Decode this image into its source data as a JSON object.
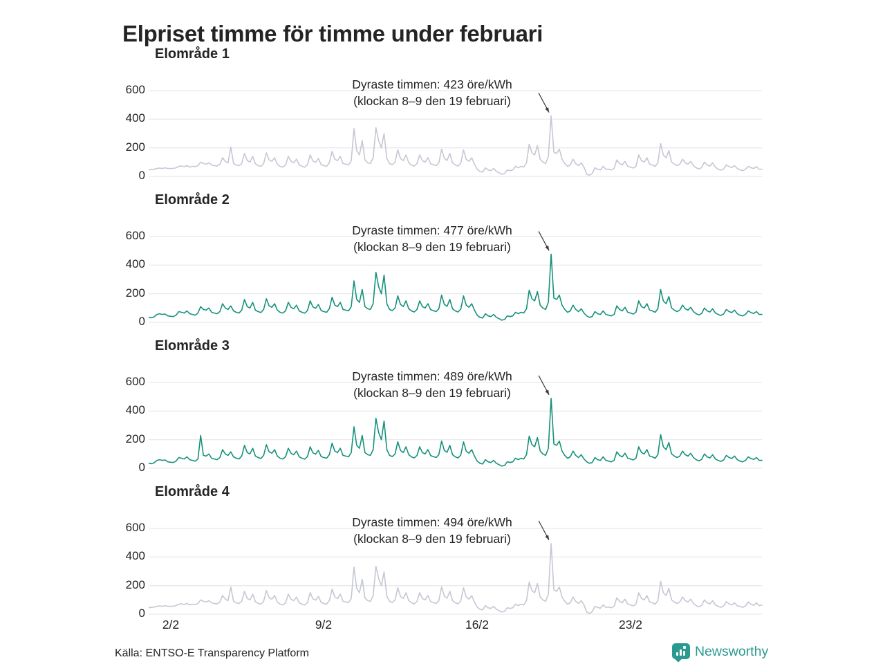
{
  "header": {
    "title": "Elpriset timme för timme under februari"
  },
  "footer": {
    "source": "Källa: ENTSO-E Transparency Platform",
    "brand": "Newsworthy",
    "brand_color": "#2a9a90"
  },
  "chart_data": {
    "type": "line",
    "title": "Elpriset timme för timme under februari",
    "unit": "öre/kWh",
    "x_domain_days": [
      1,
      29
    ],
    "samples_per_day": 8,
    "grid": true,
    "gridline_color": "#e3e3e6",
    "y_tick_values": [
      0,
      200,
      400,
      600
    ],
    "y_tick_labels": [
      "600",
      "400",
      "200",
      "0"
    ],
    "ylim": [
      0,
      730
    ],
    "x_tick_labels": [
      "2/2",
      "9/2",
      "16/2",
      "23/2"
    ],
    "x_tick_days": [
      2,
      9,
      16,
      23
    ],
    "panels": [
      {
        "title": "Elområde 1",
        "color": "#c5c7d3",
        "max_value": 423,
        "annotation_line1": "Dyraste timmen: 423 öre/kWh",
        "annotation_line2": "(klockan 8–9 den 19 februari)",
        "spike_day": 19.375,
        "values": [
          45,
          48,
          50,
          55,
          58,
          55,
          60,
          55,
          55,
          56,
          60,
          70,
          72,
          68,
          75,
          65,
          70,
          68,
          75,
          100,
          90,
          85,
          95,
          80,
          75,
          72,
          85,
          130,
          105,
          95,
          205,
          90,
          80,
          75,
          90,
          160,
          110,
          100,
          140,
          88,
          75,
          70,
          90,
          165,
          115,
          105,
          130,
          85,
          70,
          65,
          80,
          140,
          105,
          95,
          120,
          80,
          70,
          64,
          82,
          150,
          108,
          98,
          125,
          82,
          75,
          70,
          95,
          175,
          120,
          110,
          140,
          90,
          85,
          80,
          110,
          335,
          180,
          150,
          250,
          115,
          95,
          90,
          130,
          340,
          250,
          200,
          300,
          125,
          90,
          82,
          100,
          185,
          125,
          110,
          150,
          95,
          80,
          72,
          90,
          150,
          110,
          100,
          130,
          88,
          82,
          75,
          95,
          190,
          125,
          112,
          160,
          95,
          80,
          72,
          92,
          185,
          120,
          105,
          130,
          85,
          50,
          35,
          30,
          60,
          45,
          40,
          55,
          35,
          25,
          15,
          20,
          45,
          40,
          45,
          70,
          60,
          70,
          65,
          95,
          225,
          165,
          150,
          215,
          120,
          100,
          90,
          140,
          423,
          170,
          160,
          190,
          120,
          90,
          70,
          80,
          120,
          90,
          75,
          95,
          65,
          15,
          8,
          20,
          60,
          50,
          45,
          70,
          50,
          50,
          45,
          55,
          115,
          90,
          80,
          105,
          70,
          65,
          58,
          70,
          150,
          110,
          100,
          130,
          85,
          80,
          70,
          95,
          230,
          150,
          130,
          180,
          100,
          85,
          75,
          85,
          120,
          95,
          85,
          105,
          75,
          60,
          52,
          62,
          100,
          80,
          72,
          95,
          65,
          50,
          44,
          52,
          80,
          68,
          62,
          75,
          55,
          45,
          40,
          50,
          70,
          60,
          55,
          68,
          50,
          50
        ]
      },
      {
        "title": "Elområde 2",
        "color": "#15917b",
        "max_value": 477,
        "annotation_line1": "Dyraste timmen: 477 öre/kWh",
        "annotation_line2": "(klockan 8–9 den 19 februari)",
        "spike_day": 19.375,
        "values": [
          35,
          32,
          38,
          55,
          60,
          55,
          58,
          45,
          42,
          40,
          50,
          75,
          70,
          65,
          80,
          60,
          55,
          50,
          65,
          110,
          90,
          85,
          100,
          70,
          65,
          60,
          75,
          130,
          100,
          90,
          115,
          80,
          70,
          65,
          85,
          160,
          110,
          100,
          140,
          85,
          75,
          68,
          90,
          165,
          115,
          105,
          130,
          85,
          70,
          65,
          80,
          140,
          105,
          95,
          120,
          80,
          70,
          64,
          82,
          150,
          108,
          98,
          125,
          82,
          75,
          70,
          95,
          175,
          120,
          110,
          140,
          90,
          85,
          80,
          110,
          290,
          160,
          140,
          230,
          110,
          95,
          90,
          130,
          350,
          250,
          200,
          330,
          130,
          90,
          82,
          100,
          185,
          125,
          110,
          150,
          95,
          80,
          72,
          90,
          150,
          110,
          100,
          130,
          88,
          82,
          75,
          95,
          190,
          125,
          112,
          160,
          95,
          80,
          72,
          92,
          185,
          120,
          105,
          130,
          85,
          50,
          35,
          30,
          60,
          45,
          40,
          55,
          35,
          25,
          15,
          20,
          45,
          40,
          45,
          70,
          60,
          70,
          65,
          95,
          225,
          165,
          150,
          215,
          120,
          100,
          90,
          140,
          477,
          170,
          160,
          190,
          120,
          90,
          70,
          80,
          120,
          90,
          75,
          95,
          65,
          45,
          35,
          40,
          75,
          60,
          55,
          80,
          55,
          50,
          45,
          55,
          115,
          90,
          80,
          105,
          70,
          65,
          58,
          70,
          150,
          110,
          100,
          130,
          85,
          80,
          70,
          95,
          230,
          150,
          130,
          180,
          100,
          85,
          75,
          85,
          120,
          95,
          85,
          105,
          75,
          60,
          52,
          62,
          100,
          80,
          72,
          95,
          65,
          55,
          48,
          58,
          90,
          75,
          68,
          85,
          60,
          50,
          45,
          55,
          80,
          68,
          62,
          75,
          55,
          55
        ]
      },
      {
        "title": "Elområde 3",
        "color": "#15917b",
        "max_value": 489,
        "annotation_line1": "Dyraste timmen: 489 öre/kWh",
        "annotation_line2": "(klockan 8–9 den 19 februari)",
        "spike_day": 19.375,
        "values": [
          35,
          32,
          38,
          55,
          60,
          55,
          58,
          45,
          42,
          40,
          50,
          75,
          70,
          65,
          80,
          60,
          55,
          50,
          65,
          230,
          90,
          85,
          100,
          70,
          65,
          60,
          75,
          130,
          100,
          90,
          115,
          80,
          70,
          65,
          85,
          160,
          110,
          100,
          140,
          85,
          75,
          68,
          90,
          165,
          115,
          105,
          130,
          85,
          70,
          65,
          80,
          140,
          105,
          95,
          120,
          80,
          70,
          64,
          82,
          150,
          108,
          98,
          125,
          82,
          75,
          70,
          95,
          175,
          120,
          110,
          140,
          90,
          85,
          80,
          110,
          290,
          160,
          140,
          230,
          110,
          95,
          90,
          130,
          350,
          250,
          200,
          330,
          130,
          90,
          82,
          100,
          185,
          125,
          110,
          150,
          95,
          80,
          72,
          90,
          150,
          110,
          100,
          130,
          88,
          82,
          75,
          95,
          190,
          125,
          112,
          160,
          95,
          80,
          72,
          92,
          185,
          120,
          105,
          130,
          85,
          50,
          35,
          30,
          60,
          45,
          40,
          55,
          35,
          25,
          15,
          20,
          45,
          40,
          45,
          70,
          60,
          70,
          65,
          95,
          225,
          165,
          150,
          215,
          120,
          100,
          90,
          140,
          489,
          170,
          160,
          190,
          120,
          90,
          70,
          80,
          120,
          90,
          75,
          95,
          65,
          45,
          35,
          40,
          75,
          60,
          55,
          80,
          55,
          50,
          45,
          55,
          115,
          90,
          80,
          105,
          70,
          65,
          58,
          70,
          150,
          110,
          100,
          130,
          85,
          80,
          70,
          95,
          235,
          150,
          130,
          180,
          100,
          85,
          75,
          85,
          120,
          95,
          85,
          105,
          75,
          60,
          52,
          62,
          100,
          80,
          72,
          95,
          65,
          55,
          48,
          58,
          90,
          75,
          68,
          85,
          60,
          50,
          45,
          55,
          80,
          68,
          62,
          75,
          55,
          55
        ]
      },
      {
        "title": "Elområde 4",
        "color": "#c5c7d3",
        "max_value": 494,
        "annotation_line1": "Dyraste timmen: 494 öre/kWh",
        "annotation_line2": "(klockan 8–9 den 19 februari)",
        "spike_day": 19.375,
        "values": [
          45,
          48,
          50,
          55,
          58,
          55,
          60,
          55,
          55,
          56,
          60,
          70,
          72,
          68,
          75,
          65,
          70,
          68,
          75,
          100,
          90,
          85,
          95,
          80,
          75,
          72,
          85,
          130,
          105,
          95,
          190,
          90,
          80,
          75,
          90,
          160,
          110,
          100,
          140,
          88,
          75,
          70,
          90,
          165,
          115,
          105,
          130,
          85,
          70,
          65,
          80,
          140,
          105,
          95,
          120,
          80,
          70,
          64,
          82,
          150,
          108,
          98,
          125,
          82,
          75,
          70,
          95,
          175,
          120,
          110,
          140,
          90,
          85,
          80,
          110,
          330,
          180,
          150,
          245,
          115,
          95,
          90,
          130,
          335,
          250,
          200,
          295,
          125,
          90,
          82,
          100,
          185,
          125,
          110,
          150,
          95,
          80,
          72,
          90,
          150,
          110,
          100,
          130,
          88,
          82,
          75,
          95,
          190,
          125,
          112,
          160,
          95,
          80,
          72,
          92,
          185,
          120,
          105,
          130,
          85,
          50,
          35,
          30,
          60,
          45,
          40,
          55,
          35,
          25,
          15,
          20,
          45,
          40,
          45,
          70,
          60,
          70,
          65,
          95,
          225,
          165,
          150,
          215,
          120,
          100,
          90,
          140,
          494,
          170,
          160,
          190,
          120,
          90,
          70,
          80,
          120,
          90,
          75,
          95,
          65,
          15,
          5,
          18,
          55,
          48,
          42,
          65,
          48,
          50,
          45,
          55,
          115,
          90,
          80,
          105,
          70,
          65,
          58,
          70,
          150,
          110,
          100,
          130,
          85,
          80,
          70,
          95,
          230,
          150,
          130,
          180,
          100,
          85,
          75,
          85,
          120,
          95,
          85,
          105,
          75,
          60,
          52,
          62,
          100,
          80,
          72,
          95,
          65,
          55,
          48,
          58,
          88,
          72,
          65,
          80,
          58,
          55,
          48,
          58,
          85,
          70,
          62,
          80,
          60,
          65
        ]
      }
    ]
  }
}
